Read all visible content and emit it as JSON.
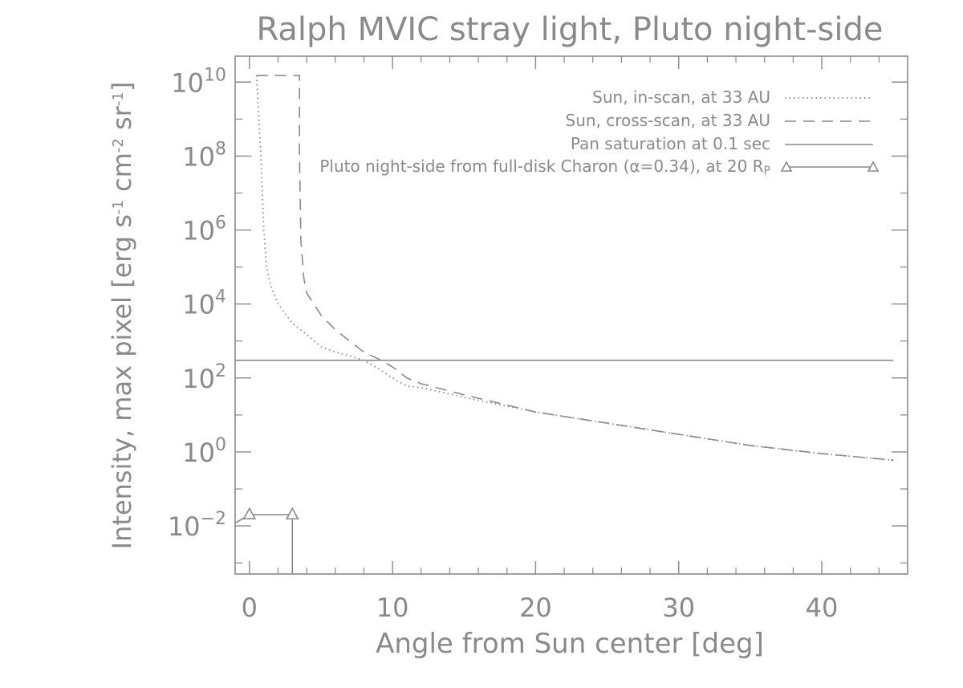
{
  "chart_data": {
    "type": "line",
    "title": "Ralph MVIC stray light, Pluto night-side",
    "xlabel": "Angle from Sun center [deg]",
    "ylabel": {
      "text": "Intensity, max pixel [erg s",
      "sup1": "-1",
      "mid1": " cm",
      "sup2": "-2",
      "mid2": " sr",
      "sup3": "-1",
      "end": "]"
    },
    "xlim": [
      -1,
      46
    ],
    "ylim_log10": [
      -3.3,
      10.7
    ],
    "xscale": "linear",
    "yscale": "log",
    "xticks": [
      {
        "value": 0,
        "label": "0"
      },
      {
        "value": 10,
        "label": "10"
      },
      {
        "value": 20,
        "label": "20"
      },
      {
        "value": 30,
        "label": "30"
      },
      {
        "value": 40,
        "label": "40"
      }
    ],
    "yticks": [
      {
        "exp": -2,
        "base": "10",
        "sup": "−2"
      },
      {
        "exp": 0,
        "base": "10",
        "sup": "0"
      },
      {
        "exp": 2,
        "base": "10",
        "sup": "2"
      },
      {
        "exp": 4,
        "base": "10",
        "sup": "4"
      },
      {
        "exp": 6,
        "base": "10",
        "sup": "6"
      },
      {
        "exp": 8,
        "base": "10",
        "sup": "8"
      },
      {
        "exp": 10,
        "base": "10",
        "sup": "10"
      }
    ],
    "legend_position": "top-right",
    "series": [
      {
        "name": "Sun, in-scan, at 33 AU",
        "style": "dotted",
        "x": [
          0.5,
          0.8,
          1.0,
          1.2,
          1.5,
          2.0,
          3.0,
          4.0,
          5.0,
          6.0,
          7.0,
          8.0,
          9.0,
          10.0,
          11.0,
          12.0,
          15.0,
          20.0,
          25.0,
          30.0,
          35.0,
          40.0,
          45.0
        ],
        "y": [
          15000000000.0,
          100000000.0,
          1000000.0,
          100000.0,
          30000.0,
          10000.0,
          3000,
          1500,
          700,
          500,
          400,
          300,
          180,
          100,
          60,
          55,
          30,
          12,
          6,
          3,
          1.5,
          0.9,
          0.6
        ]
      },
      {
        "name": "Sun, cross-scan, at 33 AU",
        "style": "dashed",
        "x": [
          0.5,
          3.5,
          3.5,
          3.6,
          3.8,
          4.0,
          5.0,
          6.0,
          7.0,
          8.0,
          9.0,
          10.0,
          11.0,
          12.0,
          15.0,
          20.0,
          25.0,
          30.0,
          35.0,
          40.0,
          45.0
        ],
        "y": [
          15000000000.0,
          15000000000.0,
          100000000.0,
          500000.0,
          50000.0,
          20000.0,
          5000,
          2000,
          1000,
          500,
          330,
          200,
          100,
          70,
          35,
          12,
          6,
          3,
          1.5,
          0.9,
          0.6
        ]
      },
      {
        "name": "Pan saturation at 0.1 sec",
        "style": "solid",
        "x": [
          -1,
          45
        ],
        "y": [
          300,
          300
        ]
      },
      {
        "name": "Pluto night-side from full-disk Charon (α=0.34), at 20 R",
        "name_sub": "P",
        "style": "solid-triangle",
        "x": [
          -1,
          0,
          3,
          3
        ],
        "y": [
          0.012,
          0.02,
          0.02,
          0.0005
        ]
      }
    ]
  }
}
